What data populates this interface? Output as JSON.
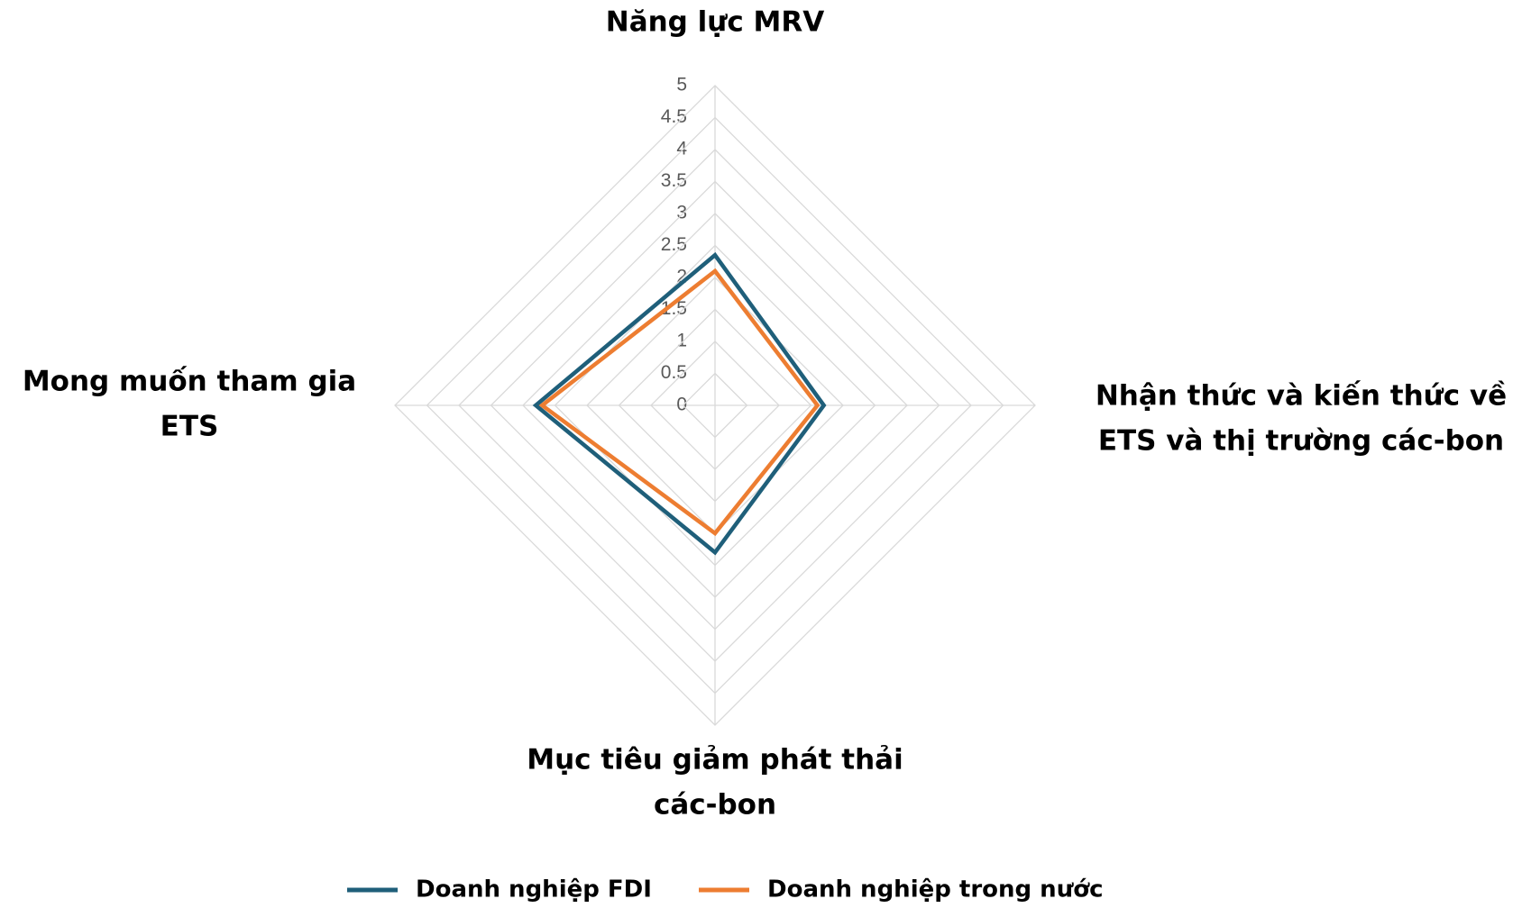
{
  "chart_data": {
    "type": "radar",
    "title": "Năng lực MRV",
    "categories": [
      [
        "Năng lực MRV"
      ],
      [
        "Nhận thức và kiến thức về",
        "ETS và thị trường các-bon"
      ],
      [
        "Mục tiêu giảm phát thải",
        "các-bon"
      ],
      [
        "Mong muốn tham gia",
        "ETS"
      ]
    ],
    "series": [
      {
        "name": "Doanh nghiệp FDI",
        "color": "#1f5f7a",
        "values": [
          2.35,
          1.7,
          2.3,
          2.8
        ]
      },
      {
        "name": "Doanh nghiệp trong nước",
        "color": "#ed7d31",
        "values": [
          2.1,
          1.6,
          2.0,
          2.7
        ]
      }
    ],
    "rlim": [
      0,
      5
    ],
    "rticks": [
      0,
      0.5,
      1,
      1.5,
      2,
      2.5,
      3,
      3.5,
      4,
      4.5,
      5
    ],
    "grid": true,
    "legend": "bottom"
  }
}
